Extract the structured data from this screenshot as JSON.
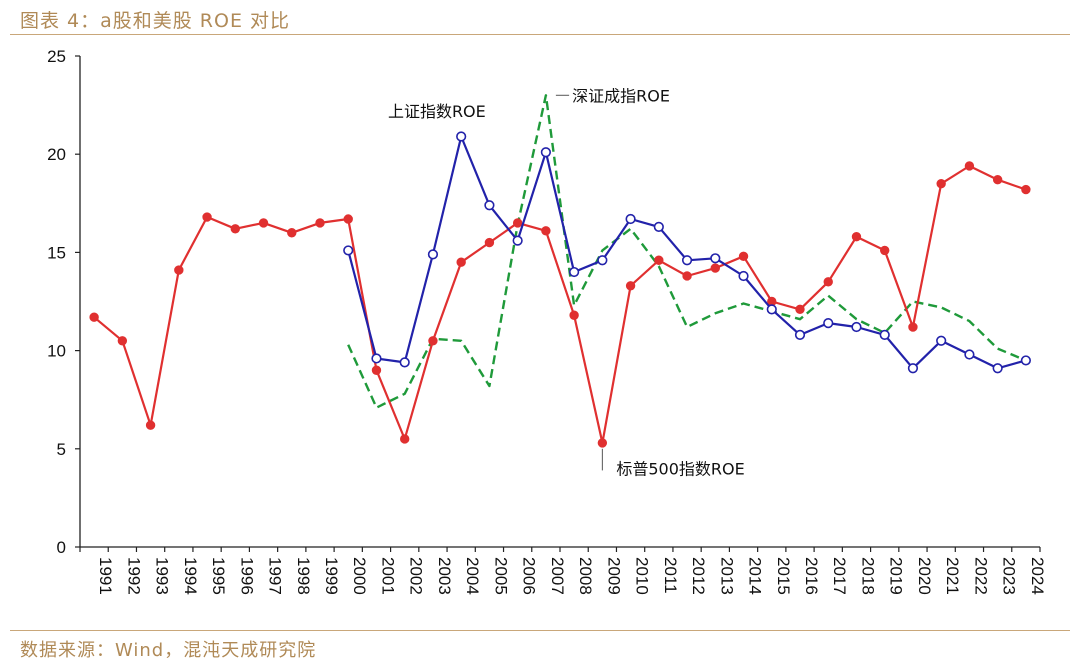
{
  "header": {
    "title": "图表 4：a股和美股 ROE 对比"
  },
  "footer": {
    "source": "数据来源：Wind，混沌天成研究院"
  },
  "chart_data": {
    "type": "line",
    "title": "",
    "xlabel": "",
    "ylabel": "",
    "ylim": [
      0,
      25
    ],
    "yticks": [
      0,
      5,
      10,
      15,
      20,
      25
    ],
    "grid": false,
    "legend": "none",
    "categories": [
      "1991",
      "1992",
      "1993",
      "1994",
      "1995",
      "1996",
      "1997",
      "1998",
      "1999",
      "2000",
      "2001",
      "2002",
      "2003",
      "2004",
      "2005",
      "2006",
      "2007",
      "2008",
      "2009",
      "2010",
      "2011",
      "2012",
      "2013",
      "2014",
      "2015",
      "2016",
      "2017",
      "2018",
      "2019",
      "2020",
      "2021",
      "2022",
      "2023",
      "2024"
    ],
    "series": [
      {
        "name": "标普500指数ROE",
        "color": "#e03030",
        "style": "solid-filled-markers",
        "values": [
          11.7,
          10.5,
          6.2,
          14.1,
          16.8,
          16.2,
          16.5,
          16.0,
          16.5,
          16.7,
          9.0,
          5.5,
          10.5,
          14.5,
          15.5,
          16.5,
          16.1,
          11.8,
          5.3,
          13.3,
          14.6,
          13.8,
          14.2,
          14.8,
          12.5,
          12.1,
          13.5,
          15.8,
          15.1,
          11.2,
          18.5,
          19.4,
          18.7,
          18.2
        ]
      },
      {
        "name": "上证指数ROE",
        "color": "#2222aa",
        "style": "solid-hollow-markers",
        "values": [
          null,
          null,
          null,
          null,
          null,
          null,
          null,
          null,
          null,
          15.1,
          9.6,
          9.4,
          14.9,
          20.9,
          17.4,
          15.6,
          20.1,
          14.0,
          14.6,
          16.7,
          16.3,
          14.6,
          14.7,
          13.8,
          12.1,
          10.8,
          11.4,
          11.2,
          10.8,
          9.1,
          10.5,
          9.8,
          9.1,
          9.5
        ]
      },
      {
        "name": "深证成指ROE",
        "color": "#1f9a3a",
        "style": "dashed",
        "values": [
          null,
          null,
          null,
          null,
          null,
          null,
          null,
          null,
          null,
          10.3,
          7.1,
          7.8,
          10.6,
          10.5,
          8.2,
          16.4,
          23.0,
          12.3,
          15.1,
          16.2,
          14.3,
          11.2,
          11.9,
          12.4,
          12.0,
          11.6,
          12.8,
          11.6,
          10.9,
          12.5,
          12.2,
          11.5,
          10.1,
          9.5
        ]
      }
    ],
    "annotations": [
      {
        "text": "上证指数ROE",
        "series": "上证指数ROE"
      },
      {
        "text": "深证成指ROE",
        "series": "深证成指ROE"
      },
      {
        "text": "标普500指数ROE",
        "series": "标普500指数ROE"
      }
    ]
  }
}
